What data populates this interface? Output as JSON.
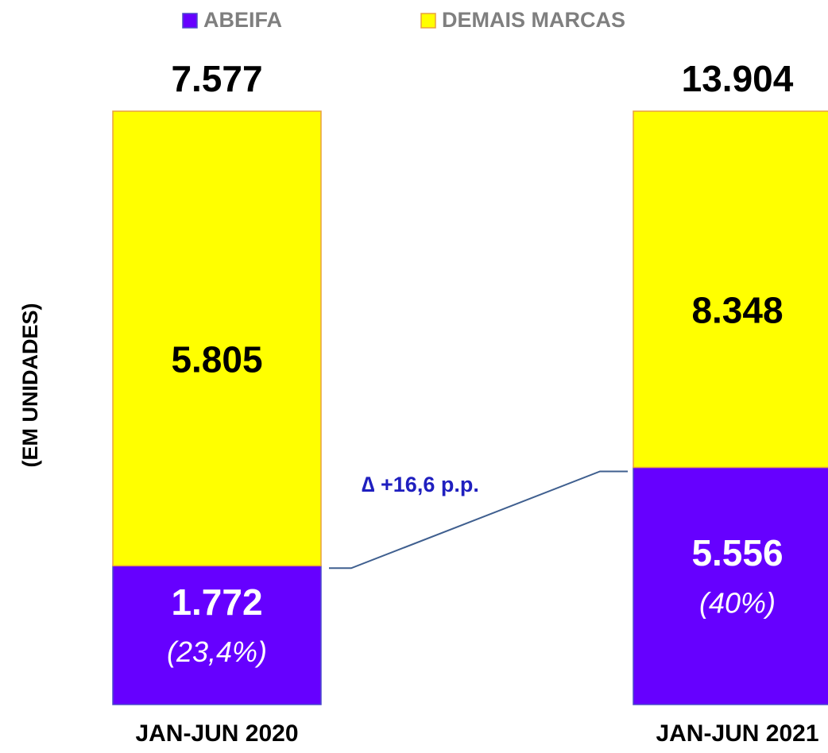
{
  "chart_data": {
    "type": "bar",
    "stacked": true,
    "normalized": true,
    "y_label": "(EM UNIDADES)",
    "categories": [
      "JAN-JUN 2020",
      "JAN-JUN 2021"
    ],
    "series": [
      {
        "name": "ABEIFA",
        "color": "#6600ff",
        "values": [
          1772,
          5556
        ],
        "value_labels": [
          "1.772",
          "5.556"
        ],
        "shares": [
          23.4,
          40
        ],
        "share_labels": [
          "(23,4%)",
          "(40%)"
        ]
      },
      {
        "name": "DEMAIS MARCAS",
        "color": "#ffff00",
        "values": [
          5805,
          8348
        ],
        "value_labels": [
          "5.805",
          "8.348"
        ]
      }
    ],
    "totals": [
      7577,
      13904
    ],
    "total_labels": [
      "7.577",
      "13.904"
    ],
    "annotation": "∆ +16,6 p.p."
  }
}
